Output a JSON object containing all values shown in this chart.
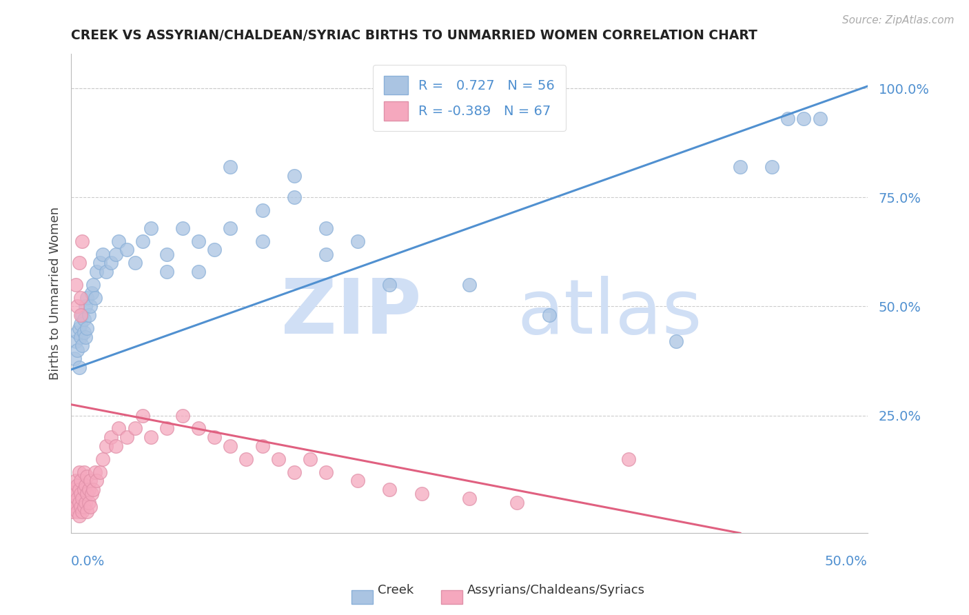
{
  "title": "CREEK VS ASSYRIAN/CHALDEAN/SYRIAC BIRTHS TO UNMARRIED WOMEN CORRELATION CHART",
  "source": "Source: ZipAtlas.com",
  "ylabel": "Births to Unmarried Women",
  "yticks": [
    0.0,
    0.25,
    0.5,
    0.75,
    1.0
  ],
  "ytick_labels": [
    "",
    "25.0%",
    "50.0%",
    "75.0%",
    "100.0%"
  ],
  "xrange": [
    0.0,
    0.5
  ],
  "yrange": [
    -0.02,
    1.08
  ],
  "creek_R": 0.727,
  "creek_N": 56,
  "assyrian_R": -0.389,
  "assyrian_N": 67,
  "creek_color": "#aac4e2",
  "creek_line_color": "#5090d0",
  "assyrian_color": "#f5a8be",
  "assyrian_line_color": "#e06080",
  "watermark_zip": "ZIP",
  "watermark_atlas": "atlas",
  "watermark_color": "#d0dff5",
  "legend_label_creek": "Creek",
  "legend_label_assyrian": "Assyrians/Chaldeans/Syriacs",
  "title_color": "#222222",
  "axis_color": "#5090d0",
  "creek_line_x0": 0.0,
  "creek_line_y0": 0.355,
  "creek_line_x1": 0.5,
  "creek_line_y1": 1.005,
  "assyr_line_x0": 0.0,
  "assyr_line_y0": 0.275,
  "assyr_line_x1": 0.42,
  "assyr_line_y1": -0.02,
  "creek_points_x": [
    0.002,
    0.003,
    0.004,
    0.004,
    0.005,
    0.005,
    0.006,
    0.006,
    0.007,
    0.007,
    0.008,
    0.008,
    0.009,
    0.009,
    0.01,
    0.01,
    0.011,
    0.012,
    0.013,
    0.014,
    0.015,
    0.016,
    0.018,
    0.02,
    0.022,
    0.025,
    0.028,
    0.03,
    0.035,
    0.04,
    0.045,
    0.05,
    0.06,
    0.07,
    0.08,
    0.09,
    0.1,
    0.12,
    0.14,
    0.16,
    0.18,
    0.06,
    0.08,
    0.1,
    0.12,
    0.14,
    0.16,
    0.2,
    0.25,
    0.3,
    0.38,
    0.42,
    0.44,
    0.45,
    0.46,
    0.47
  ],
  "creek_points_y": [
    0.38,
    0.42,
    0.4,
    0.44,
    0.36,
    0.45,
    0.43,
    0.46,
    0.41,
    0.48,
    0.44,
    0.47,
    0.43,
    0.5,
    0.45,
    0.52,
    0.48,
    0.5,
    0.53,
    0.55,
    0.52,
    0.58,
    0.6,
    0.62,
    0.58,
    0.6,
    0.62,
    0.65,
    0.63,
    0.6,
    0.65,
    0.68,
    0.62,
    0.68,
    0.65,
    0.63,
    0.82,
    0.72,
    0.8,
    0.68,
    0.65,
    0.58,
    0.58,
    0.68,
    0.65,
    0.75,
    0.62,
    0.55,
    0.55,
    0.48,
    0.42,
    0.82,
    0.82,
    0.93,
    0.93,
    0.93
  ],
  "assyrian_points_x": [
    0.001,
    0.002,
    0.002,
    0.003,
    0.003,
    0.003,
    0.004,
    0.004,
    0.004,
    0.005,
    0.005,
    0.005,
    0.005,
    0.006,
    0.006,
    0.006,
    0.007,
    0.007,
    0.008,
    0.008,
    0.008,
    0.009,
    0.009,
    0.01,
    0.01,
    0.01,
    0.011,
    0.011,
    0.012,
    0.012,
    0.013,
    0.014,
    0.015,
    0.016,
    0.018,
    0.02,
    0.022,
    0.025,
    0.028,
    0.03,
    0.035,
    0.04,
    0.045,
    0.05,
    0.06,
    0.07,
    0.08,
    0.09,
    0.1,
    0.11,
    0.12,
    0.13,
    0.14,
    0.15,
    0.16,
    0.18,
    0.2,
    0.22,
    0.25,
    0.28,
    0.003,
    0.004,
    0.005,
    0.006,
    0.006,
    0.007,
    0.35
  ],
  "assyrian_points_y": [
    0.03,
    0.05,
    0.08,
    0.04,
    0.07,
    0.1,
    0.03,
    0.06,
    0.09,
    0.02,
    0.05,
    0.08,
    0.12,
    0.04,
    0.07,
    0.1,
    0.03,
    0.06,
    0.04,
    0.08,
    0.12,
    0.05,
    0.09,
    0.03,
    0.07,
    0.11,
    0.05,
    0.08,
    0.04,
    0.1,
    0.07,
    0.08,
    0.12,
    0.1,
    0.12,
    0.15,
    0.18,
    0.2,
    0.18,
    0.22,
    0.2,
    0.22,
    0.25,
    0.2,
    0.22,
    0.25,
    0.22,
    0.2,
    0.18,
    0.15,
    0.18,
    0.15,
    0.12,
    0.15,
    0.12,
    0.1,
    0.08,
    0.07,
    0.06,
    0.05,
    0.55,
    0.5,
    0.6,
    0.48,
    0.52,
    0.65,
    0.15
  ]
}
